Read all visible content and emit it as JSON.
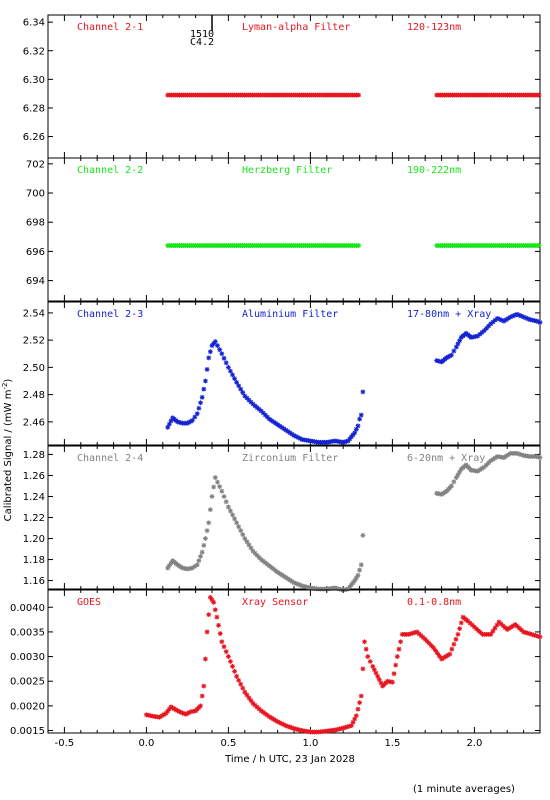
{
  "ylabel": "Calibrated Signal / (mW m",
  "ylabel_sup": "-2",
  "ylabel_end": ")",
  "xlabel": "Time / h UTC, 23 Jan 2028",
  "footnote": "(1 minute averages)",
  "chart_data": {
    "type": "scatter",
    "x_range": [
      -0.6,
      2.4
    ],
    "x_ticks": [
      -0.5,
      0.0,
      0.5,
      1.0,
      1.5,
      2.0
    ],
    "x_tick_labels": [
      "-0.5",
      "0.0",
      "0.5",
      "1.0",
      "1.5",
      "2.0"
    ],
    "flare_marker": {
      "x": 0.4,
      "label_top": "1510",
      "label_bottom": "C4.2"
    },
    "panels": [
      {
        "key": "ch21",
        "color": "#e8141e",
        "channel": "Channel 2-1",
        "filter": "Lyman-alpha Filter",
        "band": "120-123nm",
        "ylim": [
          6.245,
          6.345
        ],
        "yticks": [
          6.26,
          6.28,
          6.3,
          6.32,
          6.34
        ],
        "ytick_labels": [
          "6.26",
          "6.28",
          "6.30",
          "6.32",
          "6.34"
        ],
        "segments": [
          {
            "start": 0.13,
            "end": 1.3,
            "value": 6.289
          },
          {
            "start": 1.77,
            "end": 2.4,
            "value": 6.289
          }
        ]
      },
      {
        "key": "ch22",
        "color": "#19e619",
        "channel": "Channel 2-2",
        "filter": "Herzberg Filter",
        "band": "190-222nm",
        "ylim": [
          692.6,
          702.4
        ],
        "yticks": [
          694,
          696,
          698,
          700,
          702
        ],
        "ytick_labels": [
          "694",
          "696",
          "698",
          "700",
          "702"
        ],
        "segments": [
          {
            "start": 0.13,
            "end": 1.3,
            "value": 696.4
          },
          {
            "start": 1.77,
            "end": 2.4,
            "value": 696.4
          }
        ]
      },
      {
        "key": "ch23",
        "color": "#1423d2",
        "channel": "Channel 2-3",
        "filter": "Aluminium Filter",
        "band": "17-80nm + Xray",
        "ylim": [
          2.443,
          2.548
        ],
        "yticks": [
          2.46,
          2.48,
          2.5,
          2.52,
          2.54
        ],
        "ytick_labels": [
          "2.46",
          "2.48",
          "2.50",
          "2.52",
          "2.54"
        ],
        "series": [
          {
            "x": [
              0.13,
              0.16,
              0.19,
              0.22,
              0.25,
              0.28,
              0.31,
              0.34,
              0.36,
              0.38,
              0.4,
              0.42,
              0.46,
              0.5,
              0.55,
              0.6,
              0.65,
              0.7,
              0.75,
              0.8,
              0.85,
              0.9,
              0.95,
              1.0,
              1.05,
              1.1,
              1.15,
              1.2,
              1.23,
              1.25,
              1.27,
              1.29,
              1.3,
              1.31,
              1.32
            ],
            "y": [
              2.456,
              2.463,
              2.46,
              2.459,
              2.459,
              2.461,
              2.466,
              2.478,
              2.49,
              2.507,
              2.516,
              2.519,
              2.51,
              2.5,
              2.489,
              2.479,
              2.473,
              2.468,
              2.462,
              2.458,
              2.454,
              2.45,
              2.447,
              2.446,
              2.445,
              2.445,
              2.446,
              2.445,
              2.446,
              2.449,
              2.452,
              2.457,
              2.462,
              2.465,
              2.482
            ]
          },
          {
            "x": [
              1.77,
              1.8,
              1.83,
              1.86,
              1.89,
              1.92,
              1.95,
              1.98,
              2.02,
              2.06,
              2.1,
              2.14,
              2.18,
              2.22,
              2.26,
              2.3,
              2.34,
              2.38,
              2.4
            ],
            "y": [
              2.505,
              2.504,
              2.507,
              2.509,
              2.515,
              2.522,
              2.525,
              2.522,
              2.523,
              2.527,
              2.532,
              2.536,
              2.534,
              2.537,
              2.539,
              2.537,
              2.535,
              2.534,
              2.533
            ]
          }
        ]
      },
      {
        "key": "ch24",
        "color": "#828282",
        "channel": "Channel 2-4",
        "filter": "Zirconium Filter",
        "band": "6-20nm + Xray",
        "ylim": [
          1.152,
          1.288
        ],
        "yticks": [
          1.16,
          1.18,
          1.2,
          1.22,
          1.24,
          1.26,
          1.28
        ],
        "ytick_labels": [
          "1.16",
          "1.18",
          "1.20",
          "1.22",
          "1.24",
          "1.26",
          "1.28"
        ],
        "series": [
          {
            "x": [
              0.13,
              0.16,
              0.19,
              0.22,
              0.25,
              0.28,
              0.31,
              0.34,
              0.36,
              0.38,
              0.4,
              0.42,
              0.46,
              0.5,
              0.55,
              0.6,
              0.65,
              0.7,
              0.75,
              0.8,
              0.85,
              0.9,
              0.95,
              1.0,
              1.05,
              1.1,
              1.15,
              1.2,
              1.23,
              1.25,
              1.27,
              1.29,
              1.3,
              1.31,
              1.32
            ],
            "y": [
              1.172,
              1.179,
              1.175,
              1.172,
              1.171,
              1.172,
              1.175,
              1.187,
              1.2,
              1.215,
              1.24,
              1.258,
              1.245,
              1.23,
              1.215,
              1.2,
              1.188,
              1.18,
              1.174,
              1.168,
              1.163,
              1.158,
              1.155,
              1.153,
              1.152,
              1.152,
              1.153,
              1.151,
              1.152,
              1.156,
              1.16,
              1.165,
              1.17,
              1.175,
              1.203
            ]
          },
          {
            "x": [
              1.77,
              1.8,
              1.83,
              1.86,
              1.89,
              1.92,
              1.95,
              1.98,
              2.02,
              2.06,
              2.1,
              2.14,
              2.18,
              2.22,
              2.26,
              2.3,
              2.34,
              2.38,
              2.4
            ],
            "y": [
              1.243,
              1.242,
              1.245,
              1.25,
              1.258,
              1.266,
              1.27,
              1.265,
              1.264,
              1.268,
              1.274,
              1.278,
              1.277,
              1.281,
              1.281,
              1.279,
              1.278,
              1.278,
              1.277
            ]
          }
        ]
      },
      {
        "key": "goes",
        "color": "#e8141e",
        "channel": "GOES",
        "filter": "Xray Sensor",
        "band": "0.1-0.8nm",
        "ylim": [
          0.00145,
          0.00435
        ],
        "yticks": [
          0.0015,
          0.002,
          0.0025,
          0.003,
          0.0035,
          0.004
        ],
        "ytick_labels": [
          "0.0015",
          "0.0020",
          "0.0025",
          "0.0030",
          "0.0035",
          "0.0040"
        ],
        "series": [
          {
            "x": [
              0.0,
              0.04,
              0.08,
              0.12,
              0.15,
              0.18,
              0.21,
              0.24,
              0.27,
              0.3,
              0.33,
              0.35,
              0.37,
              0.39,
              0.41,
              0.43,
              0.46,
              0.5,
              0.55,
              0.6,
              0.65,
              0.7,
              0.75,
              0.8,
              0.85,
              0.9,
              0.95,
              1.0,
              1.05,
              1.1,
              1.15,
              1.2,
              1.25,
              1.28,
              1.31,
              1.33,
              1.35,
              1.38,
              1.41,
              1.44,
              1.47,
              1.5,
              1.53,
              1.56,
              1.6,
              1.65,
              1.7,
              1.75,
              1.8,
              1.85,
              1.9,
              1.93,
              1.96,
              2.0,
              2.05,
              2.1,
              2.15,
              2.2,
              2.25,
              2.3,
              2.35,
              2.4
            ],
            "y": [
              0.00182,
              0.00179,
              0.00177,
              0.00185,
              0.00198,
              0.00192,
              0.00187,
              0.00183,
              0.00188,
              0.0019,
              0.002,
              0.0024,
              0.0035,
              0.0042,
              0.0041,
              0.0038,
              0.0033,
              0.003,
              0.0026,
              0.00228,
              0.00205,
              0.0019,
              0.00178,
              0.00168,
              0.0016,
              0.00154,
              0.0015,
              0.00147,
              0.00147,
              0.00149,
              0.00151,
              0.00155,
              0.0016,
              0.0018,
              0.0022,
              0.0033,
              0.003,
              0.0028,
              0.0026,
              0.0024,
              0.0025,
              0.00248,
              0.003,
              0.00345,
              0.00345,
              0.0035,
              0.00335,
              0.00318,
              0.00295,
              0.00305,
              0.00345,
              0.0038,
              0.00372,
              0.0036,
              0.00345,
              0.00345,
              0.0037,
              0.00355,
              0.00365,
              0.0035,
              0.00345,
              0.0034
            ]
          }
        ]
      }
    ]
  }
}
